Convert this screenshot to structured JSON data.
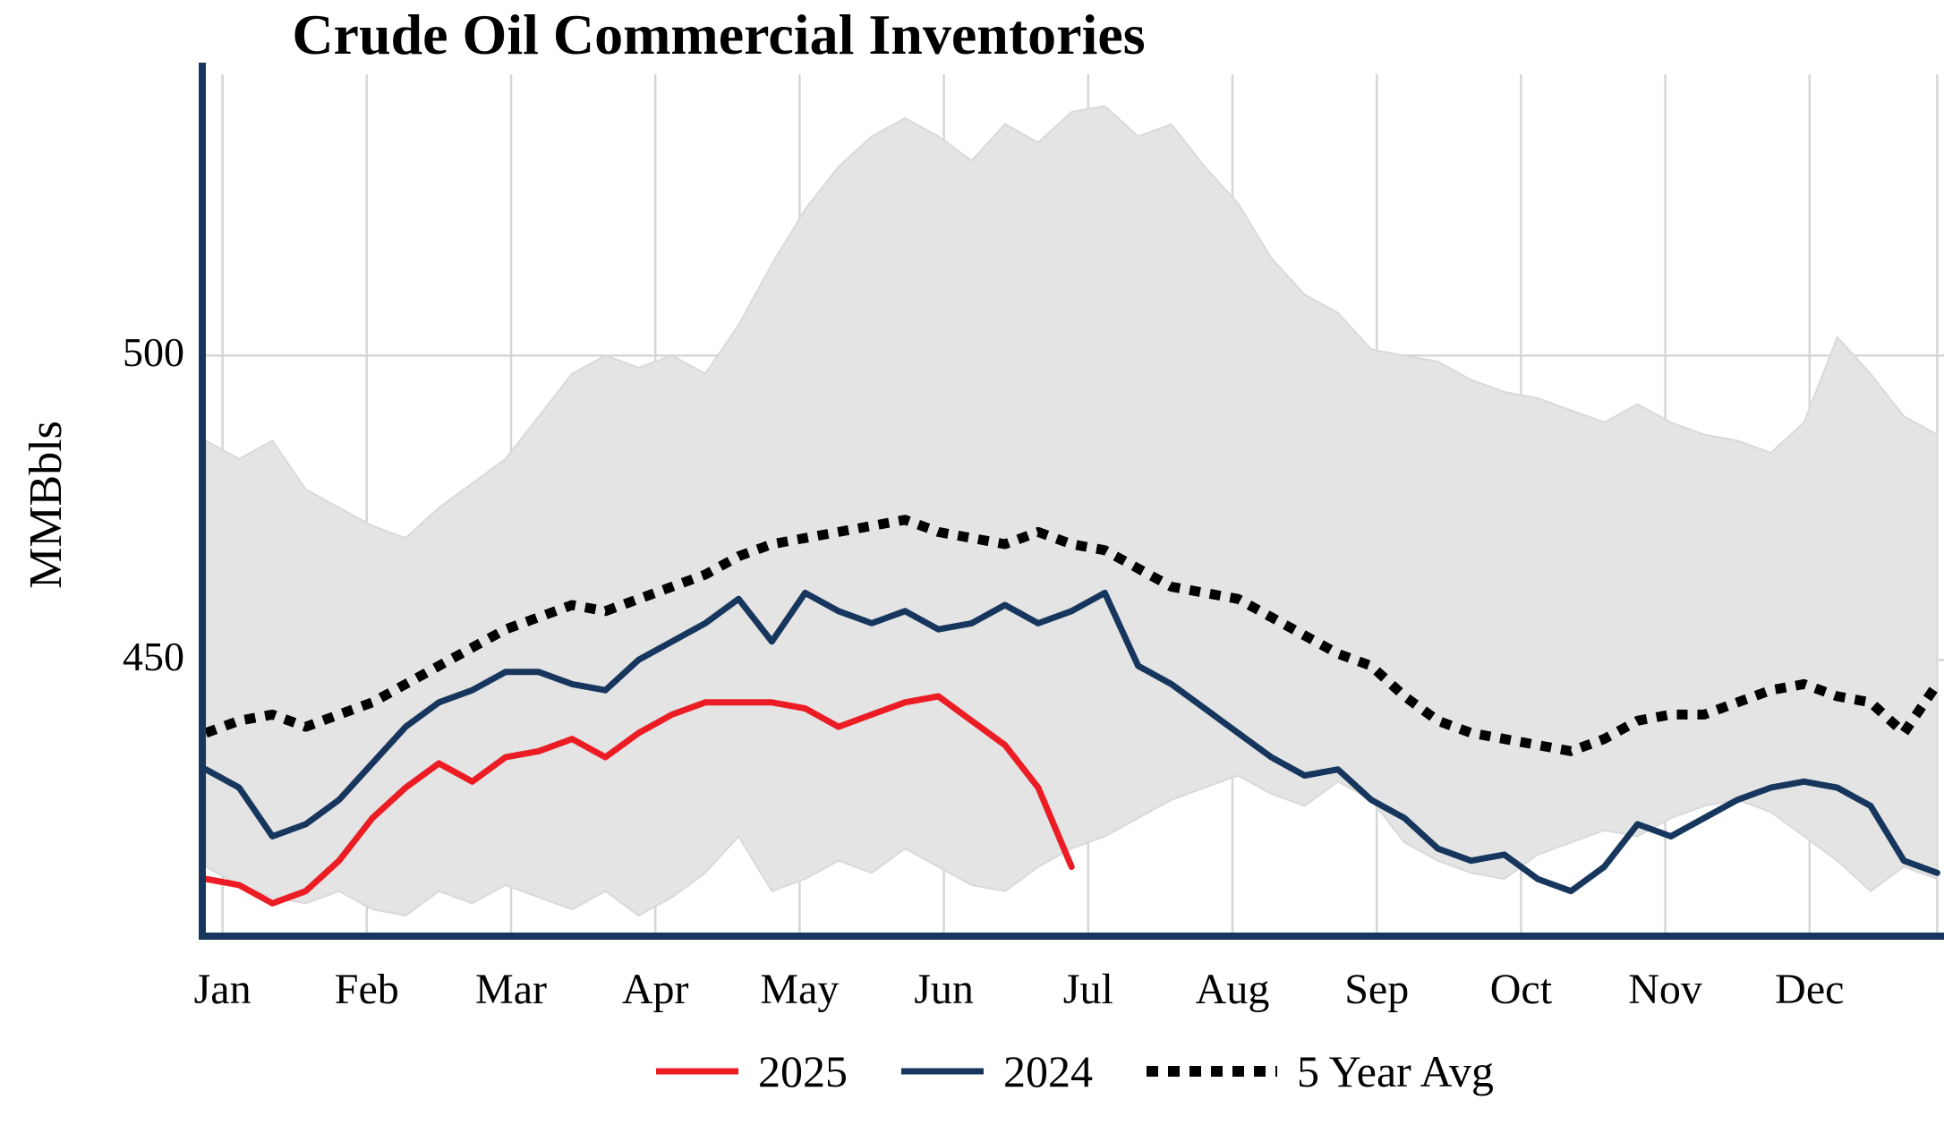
{
  "title": "Crude Oil Commercial Inventories",
  "colors": {
    "axis": "#17365d",
    "grid": "#d6d6d6",
    "band_fill": "#e4e4e4",
    "band_edge": "#d9d9d9",
    "red": "#ec1c24",
    "navy": "#17365d",
    "dotted": "#000000"
  },
  "chart_data": {
    "type": "line",
    "title": "Crude Oil Commercial Inventories",
    "xlabel": "",
    "ylabel": "MMBbls",
    "x_unit": "weeks",
    "months": [
      "Jan",
      "Feb",
      "Mar",
      "Apr",
      "May",
      "Jun",
      "Jul",
      "Aug",
      "Sep",
      "Oct",
      "Nov",
      "Dec"
    ],
    "yticks": [
      450,
      500
    ],
    "ylim": [
      404.6,
      546.2
    ],
    "grid": "on",
    "legend_position": "bottom",
    "band": {
      "name": "5-year range",
      "color": "#e4e4e4",
      "upper": [
        486,
        483,
        486,
        478,
        475,
        472,
        470,
        475,
        479,
        483,
        490,
        497,
        500,
        498,
        500,
        497,
        505,
        515,
        524,
        531,
        536,
        539,
        536,
        532,
        538,
        535,
        540,
        541,
        536,
        538,
        531,
        525,
        516,
        510,
        507,
        501,
        500,
        499,
        496,
        494,
        493,
        491,
        489,
        492,
        489,
        487,
        486,
        484,
        489,
        503,
        497,
        490,
        487
      ],
      "lower": [
        416,
        413,
        411,
        410,
        412,
        409,
        408,
        412,
        410,
        413,
        411,
        409,
        412,
        408,
        411,
        415,
        421,
        412,
        414,
        417,
        415,
        419,
        416,
        413,
        412,
        416,
        419,
        421,
        424,
        427,
        429,
        431,
        428,
        426,
        430,
        427,
        420,
        417,
        415,
        414,
        418,
        420,
        422,
        421,
        424,
        426,
        427,
        425,
        421,
        417,
        412,
        416,
        414
      ]
    },
    "series": [
      {
        "name": "2025",
        "color": "#ec1c24",
        "style": "solid",
        "values": [
          414,
          413,
          410,
          412,
          417,
          424,
          429,
          433,
          430,
          434,
          435,
          437,
          434,
          438,
          441,
          443,
          443,
          443,
          442,
          439,
          441,
          443,
          444,
          440,
          436,
          429,
          416
        ]
      },
      {
        "name": "2024",
        "color": "#17365d",
        "style": "solid",
        "values": [
          432,
          429,
          421,
          423,
          427,
          433,
          439,
          443,
          445,
          448,
          448,
          446,
          445,
          450,
          453,
          456,
          460,
          453,
          461,
          458,
          456,
          458,
          455,
          456,
          459,
          456,
          458,
          461,
          449,
          446,
          442,
          438,
          434,
          431,
          432,
          427,
          424,
          419,
          417,
          418,
          414,
          412,
          416,
          423,
          421,
          424,
          427,
          429,
          430,
          429,
          426,
          417,
          415
        ]
      },
      {
        "name": "5 Year Avg",
        "color": "#000000",
        "style": "dotted",
        "values": [
          438,
          440,
          441,
          439,
          441,
          443,
          446,
          449,
          452,
          455,
          457,
          459,
          458,
          460,
          462,
          464,
          467,
          469,
          470,
          471,
          472,
          473,
          471,
          470,
          469,
          471,
          469,
          468,
          465,
          462,
          461,
          460,
          457,
          454,
          451,
          449,
          444,
          440,
          438,
          437,
          436,
          435,
          437,
          440,
          441,
          441,
          443,
          445,
          446,
          444,
          443,
          438,
          446
        ]
      }
    ]
  }
}
